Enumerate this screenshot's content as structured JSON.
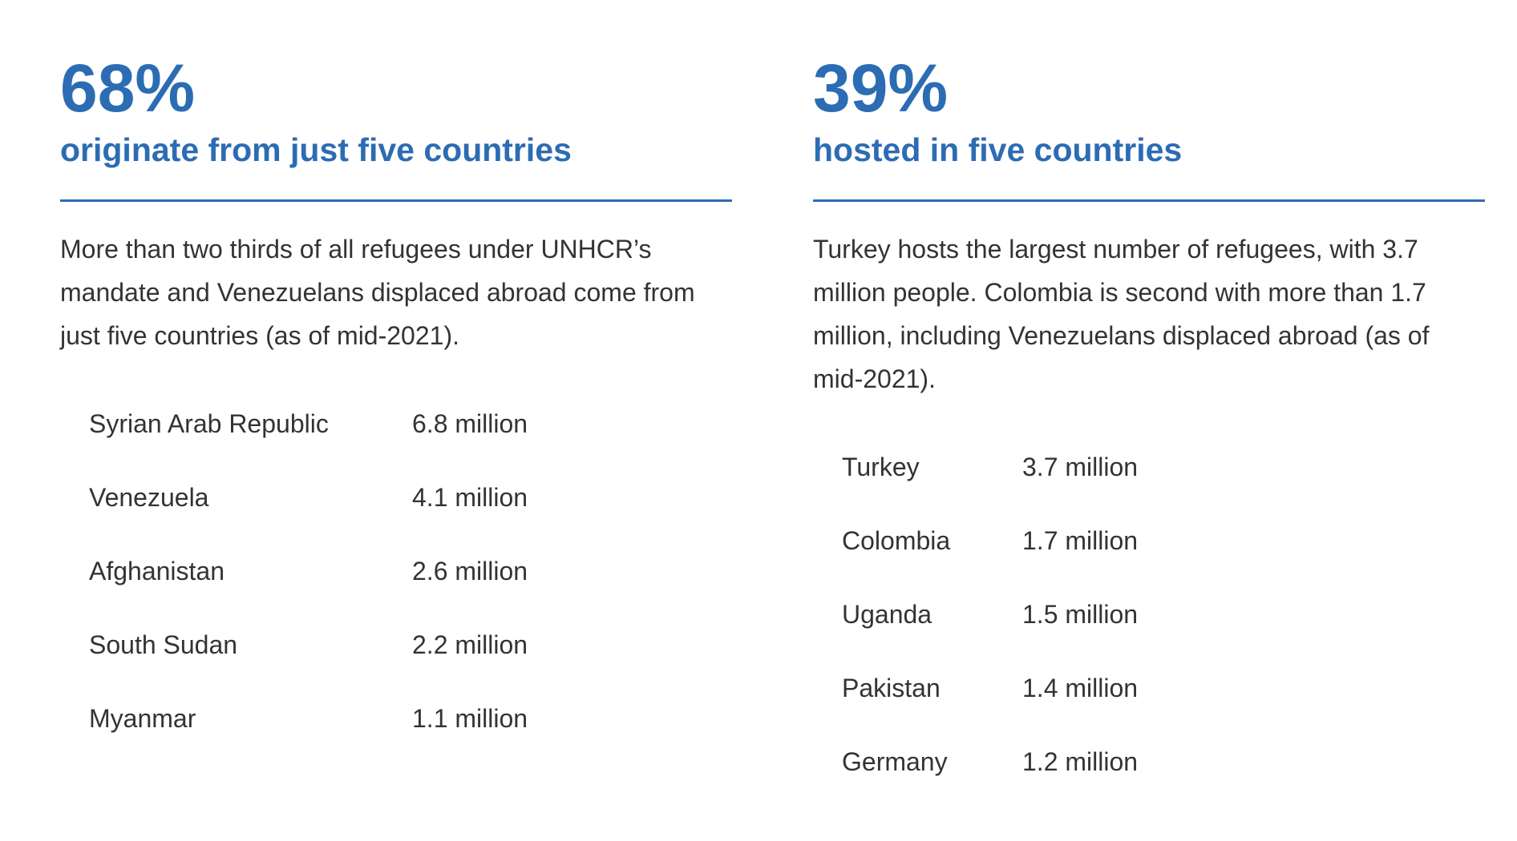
{
  "columns": [
    {
      "stat": "68%",
      "subtitle": "originate from just five countries",
      "text": "More than two thirds of all refugees under UNHCR’s mandate and Venezuelans displaced abroad come from just five countries (as of mid-2021).",
      "rows": [
        [
          "Syrian Arab Republic",
          "6.8 million"
        ],
        [
          "Venezuela",
          "4.1 million"
        ],
        [
          "Afghanistan",
          "2.6 million"
        ],
        [
          "South Sudan",
          "2.2 million"
        ],
        [
          "Myanmar",
          "1.1 million"
        ]
      ]
    },
    {
      "stat": "39%",
      "subtitle": "hosted in five countries",
      "text": "Turkey hosts the largest number of refugees, with 3.7 million people. Colombia is second with more than 1.7 million, including Venezuelans displaced abroad (as of mid-2021).",
      "rows": [
        [
          "Turkey",
          "3.7 million"
        ],
        [
          "Colombia",
          "1.7 million"
        ],
        [
          "Uganda",
          "1.5 million"
        ],
        [
          "Pakistan",
          "1.4 million"
        ],
        [
          "Germany",
          "1.2 million"
        ]
      ]
    }
  ]
}
